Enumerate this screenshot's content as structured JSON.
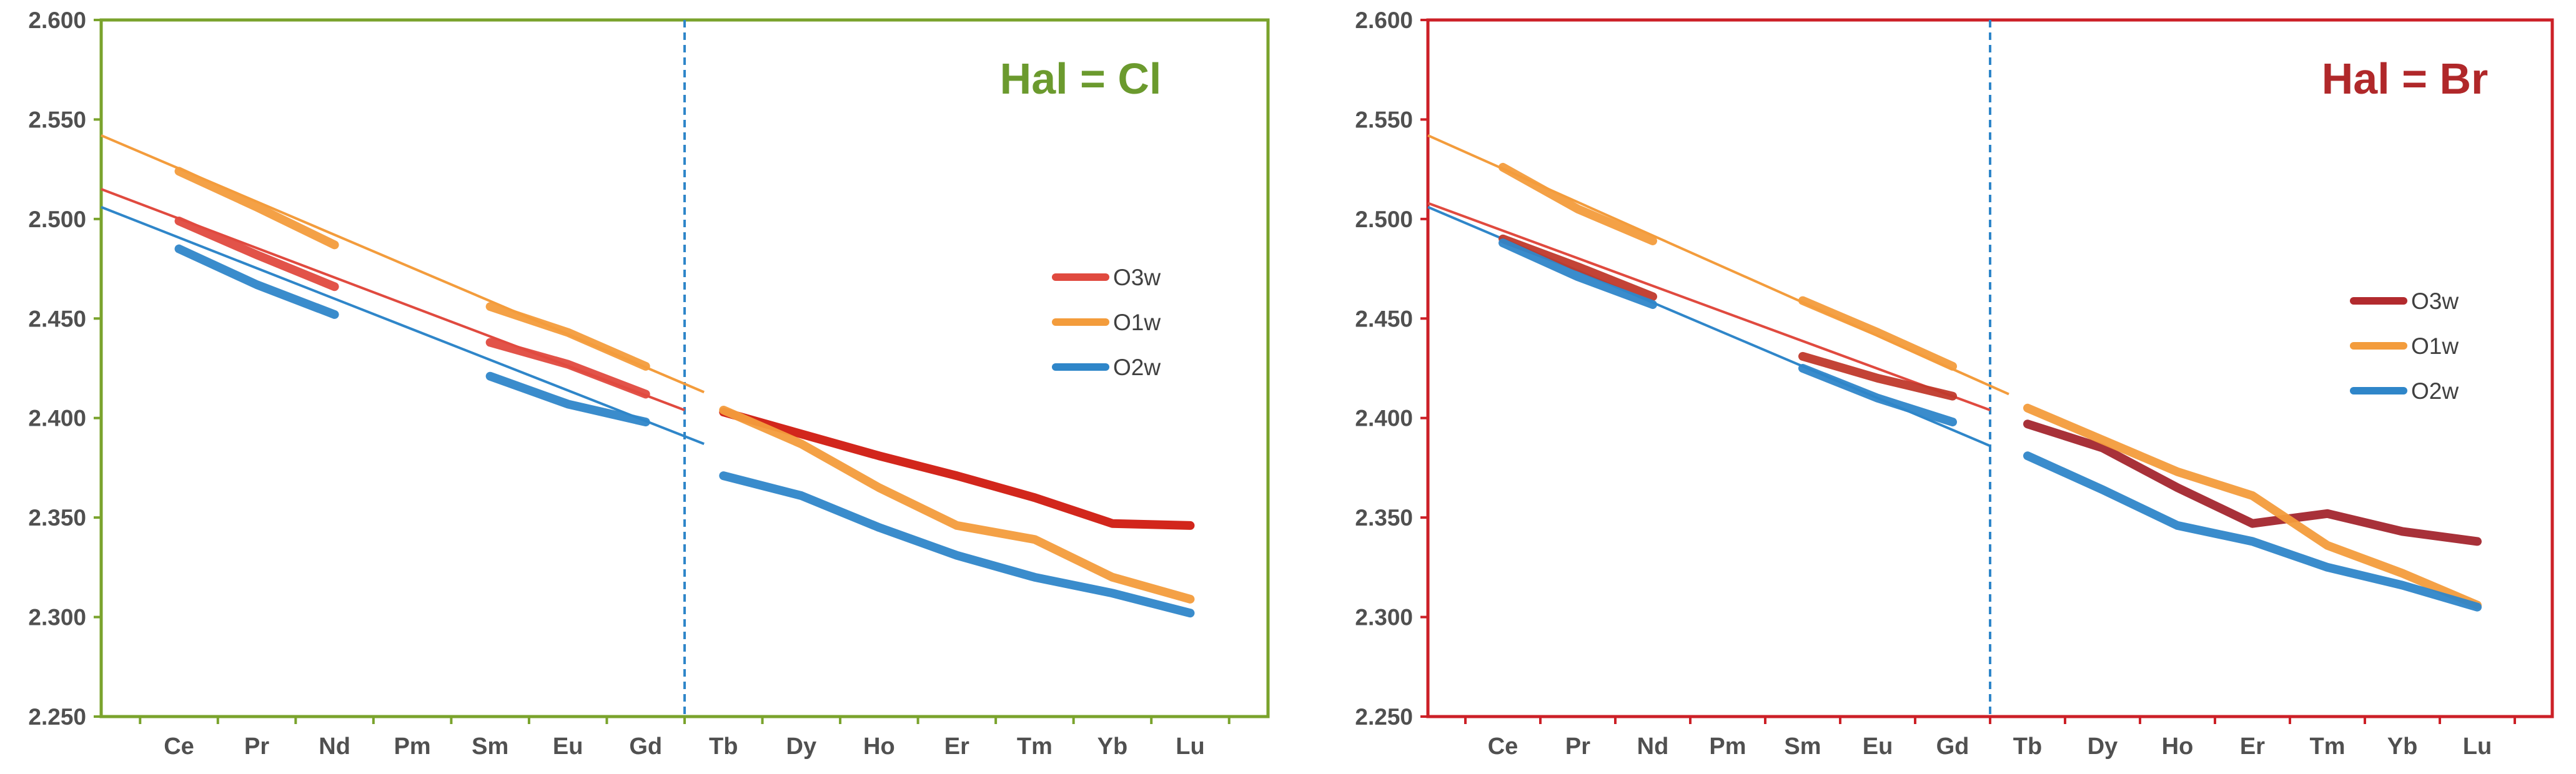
{
  "chart_data": [
    {
      "type": "line",
      "title": "Hal = Cl",
      "title_color": "#6b9a2e",
      "frame_color": "#7aa32c",
      "categories": [
        "Ce",
        "Pr",
        "Nd",
        "Pm",
        "Sm",
        "Eu",
        "Gd",
        "Tb",
        "Dy",
        "Ho",
        "Er",
        "Tm",
        "Yb",
        "Lu"
      ],
      "x_values": [
        1,
        2,
        3,
        4,
        5,
        6,
        7,
        8,
        9,
        10,
        11,
        12,
        13,
        14
      ],
      "ylim": [
        2.25,
        2.6
      ],
      "yticks": [
        "2.250",
        "2.300",
        "2.350",
        "2.400",
        "2.450",
        "2.500",
        "2.550",
        "2.600"
      ],
      "ytick_values": [
        2.25,
        2.3,
        2.35,
        2.4,
        2.45,
        2.5,
        2.55,
        2.6
      ],
      "xlim": [
        0,
        15
      ],
      "divider_x": 7.5,
      "legend": {
        "position": "right-middle",
        "entries": [
          {
            "label": "O3w",
            "color": "#e04a3f"
          },
          {
            "label": "O1w",
            "color": "#f39c3c"
          },
          {
            "label": "O2w",
            "color": "#2f86c9"
          }
        ]
      },
      "series": [
        {
          "name": "O3w",
          "color": "#e04a3f",
          "segments": [
            {
              "x": [
                1,
                2,
                3
              ],
              "y": [
                2.499,
                2.482,
                2.466
              ]
            },
            {
              "x": [
                5,
                6,
                7
              ],
              "y": [
                2.438,
                2.427,
                2.412
              ]
            },
            {
              "x": [
                8,
                9,
                10,
                11,
                12,
                13,
                14
              ],
              "y": [
                2.403,
                2.392,
                2.381,
                2.371,
                2.36,
                2.347,
                2.346
              ],
              "color": "#d01a10"
            }
          ]
        },
        {
          "name": "O1w",
          "color": "#f39c3c",
          "segments": [
            {
              "x": [
                1,
                2,
                3
              ],
              "y": [
                2.524,
                2.506,
                2.487
              ]
            },
            {
              "x": [
                5,
                6,
                7
              ],
              "y": [
                2.456,
                2.443,
                2.426
              ]
            },
            {
              "x": [
                8,
                9,
                10,
                11,
                12,
                13,
                14
              ],
              "y": [
                2.404,
                2.387,
                2.365,
                2.346,
                2.339,
                2.32,
                2.309
              ]
            }
          ]
        },
        {
          "name": "O2w",
          "color": "#2f86c9",
          "segments": [
            {
              "x": [
                1,
                2,
                3
              ],
              "y": [
                2.485,
                2.467,
                2.452
              ]
            },
            {
              "x": [
                5,
                6,
                7
              ],
              "y": [
                2.421,
                2.407,
                2.398
              ]
            },
            {
              "x": [
                8,
                9,
                10,
                11,
                12,
                13,
                14
              ],
              "y": [
                2.371,
                2.361,
                2.345,
                2.331,
                2.32,
                2.312,
                2.302
              ]
            }
          ]
        }
      ],
      "fits": [
        {
          "name": "O3w-fit",
          "color": "#e04a3f",
          "x": [
            0,
            7.5
          ],
          "y": [
            2.515,
            2.404
          ]
        },
        {
          "name": "O1w-fit",
          "color": "#f39c3c",
          "x": [
            0,
            7.75
          ],
          "y": [
            2.542,
            2.413
          ]
        },
        {
          "name": "O2w-fit",
          "color": "#2f86c9",
          "x": [
            0,
            7.75
          ],
          "y": [
            2.506,
            2.387
          ]
        }
      ]
    },
    {
      "type": "line",
      "title": "Hal = Br",
      "title_color": "#b0282a",
      "frame_color": "#cc2027",
      "categories": [
        "Ce",
        "Pr",
        "Nd",
        "Pm",
        "Sm",
        "Eu",
        "Gd",
        "Tb",
        "Dy",
        "Ho",
        "Er",
        "Tm",
        "Yb",
        "Lu"
      ],
      "x_values": [
        1,
        2,
        3,
        4,
        5,
        6,
        7,
        8,
        9,
        10,
        11,
        12,
        13,
        14
      ],
      "ylim": [
        2.25,
        2.6
      ],
      "yticks": [
        "2.250",
        "2.300",
        "2.350",
        "2.400",
        "2.450",
        "2.500",
        "2.550",
        "2.600"
      ],
      "ytick_values": [
        2.25,
        2.3,
        2.35,
        2.4,
        2.45,
        2.5,
        2.55,
        2.6
      ],
      "xlim": [
        0,
        15
      ],
      "divider_x": 7.5,
      "legend": {
        "position": "right-middle",
        "entries": [
          {
            "label": "O3w",
            "color": "#b22a2e"
          },
          {
            "label": "O1w",
            "color": "#f39c3c"
          },
          {
            "label": "O2w",
            "color": "#2f86c9"
          }
        ]
      },
      "series": [
        {
          "name": "O3w",
          "color": "#c0392b",
          "segments": [
            {
              "x": [
                1,
                2,
                3
              ],
              "y": [
                2.49,
                2.476,
                2.461
              ]
            },
            {
              "x": [
                5,
                6,
                7
              ],
              "y": [
                2.431,
                2.42,
                2.411
              ]
            },
            {
              "x": [
                8,
                9,
                10,
                11,
                12,
                13,
                14
              ],
              "y": [
                2.397,
                2.385,
                2.365,
                2.347,
                2.352,
                2.343,
                2.338
              ],
              "color": "#a3262e"
            }
          ]
        },
        {
          "name": "O1w",
          "color": "#f39c3c",
          "segments": [
            {
              "x": [
                1,
                2,
                3
              ],
              "y": [
                2.526,
                2.505,
                2.489
              ]
            },
            {
              "x": [
                5,
                6,
                7
              ],
              "y": [
                2.459,
                2.443,
                2.426
              ]
            },
            {
              "x": [
                8,
                9,
                10,
                11,
                12,
                13,
                14
              ],
              "y": [
                2.405,
                2.389,
                2.373,
                2.361,
                2.336,
                2.322,
                2.306
              ]
            }
          ]
        },
        {
          "name": "O2w",
          "color": "#2f86c9",
          "segments": [
            {
              "x": [
                1,
                2,
                3
              ],
              "y": [
                2.488,
                2.471,
                2.457
              ]
            },
            {
              "x": [
                5,
                6,
                7
              ],
              "y": [
                2.425,
                2.41,
                2.398
              ]
            },
            {
              "x": [
                8,
                9,
                10,
                11,
                12,
                13,
                14
              ],
              "y": [
                2.381,
                2.364,
                2.346,
                2.338,
                2.325,
                2.316,
                2.305
              ]
            }
          ]
        }
      ],
      "fits": [
        {
          "name": "O3w-fit",
          "color": "#e04a3f",
          "x": [
            0,
            7.5
          ],
          "y": [
            2.508,
            2.404
          ]
        },
        {
          "name": "O1w-fit",
          "color": "#f39c3c",
          "x": [
            0,
            7.75
          ],
          "y": [
            2.542,
            2.412
          ]
        },
        {
          "name": "O2w-fit",
          "color": "#2f86c9",
          "x": [
            0,
            7.5
          ],
          "y": [
            2.506,
            2.386
          ]
        }
      ]
    }
  ]
}
